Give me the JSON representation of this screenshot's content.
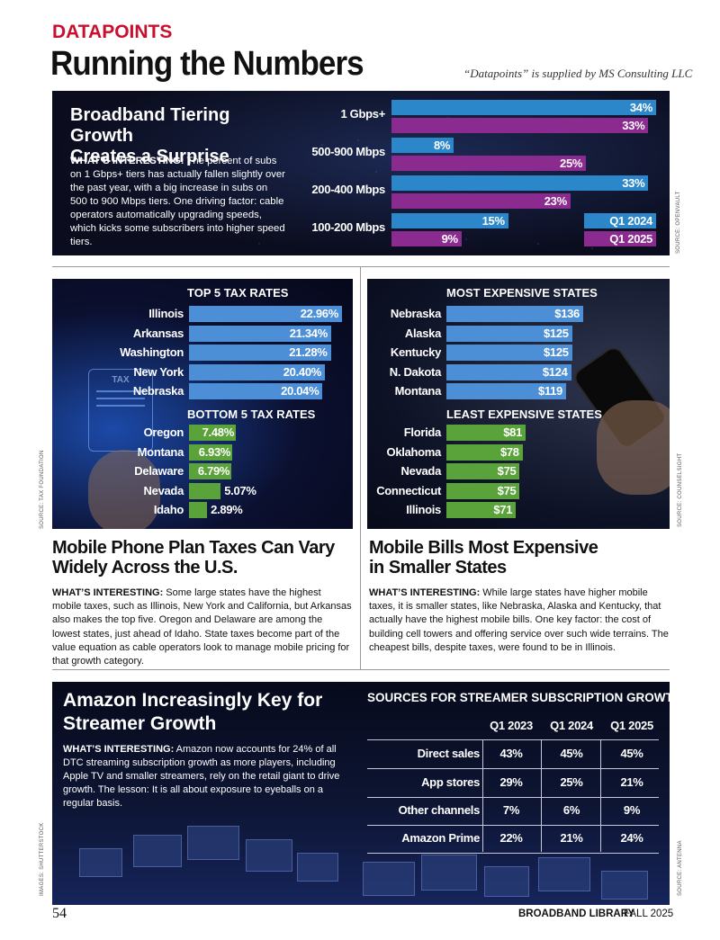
{
  "header": {
    "kicker": "DATAPOINTS",
    "title": "Running the Numbers",
    "supplied_by": "“Datapoints” is supplied by MS Consulting LLC"
  },
  "tiering": {
    "title_line1": "Broadband Tiering Growth",
    "title_line2": "Creates a Surprise",
    "lead": "WHAT’S INTERESTING:",
    "body": " The percent of subs on 1 Gbps+ tiers has actually fallen slightly over the past year, with a big increase in subs on 500 to 900 Mbps tiers. One driving factor: cable operators automatically upgrading speeds, which kicks some subscribers into higher speed tiers.",
    "source": "SOURCE: OPENVAULT"
  },
  "tax": {
    "top_heading": "TOP 5 TAX RATES",
    "bottom_heading": "BOTTOM 5 TAX RATES",
    "source": "SOURCE: TAX FOUNDATION",
    "headline_line1": "Mobile Phone Plan Taxes Can Vary",
    "headline_line2": "Widely Across the U.S.",
    "lead": "WHAT’S INTERESTING:",
    "body": " Some large states have the highest mobile taxes, such as Illinois, New York and California, but Arkansas also makes the top five. Oregon and Delaware are among the lowest states, just ahead of Idaho. State taxes become part of the value equation as cable operators look to manage mobile pricing for that growth category.",
    "icon_text": "TAX"
  },
  "bills": {
    "top_heading": "MOST EXPENSIVE STATES",
    "bottom_heading": "LEAST EXPENSIVE STATES",
    "source": "SOURCE: COUNSELSIGHT",
    "headline_line1": "Mobile Bills Most Expensive",
    "headline_line2": "in Smaller States",
    "lead": "WHAT’S INTERESTING:",
    "body": " While large states have higher mobile taxes, it is smaller states, like Nebraska, Alaska and Kentucky, that actually have the highest mobile bills. One key factor: the cost of building cell towers and offering service over such wide terrains. The cheapest bills, despite taxes, were found to be in Illinois."
  },
  "streamer": {
    "title_line1": "Amazon Increasingly Key for",
    "title_line2": "Streamer Growth",
    "lead": "WHAT’S INTERESTING:",
    "body": " Amazon now accounts for 24% of all DTC streaming subscription growth as more players, including Apple TV and smaller streamers, rely on the retail giant to drive growth. The lesson: It is all about exposure to eyeballs on a regular basis.",
    "source": "SOURCE: ANTENNA",
    "images_credit": "IMAGES: SHUTTERSTOCK"
  },
  "footer": {
    "page_number": "54",
    "publication": "BROADBAND LIBRARY",
    "issue": "FALL 2025"
  },
  "colors": {
    "q1_2024": "#2b87c9",
    "q1_2025": "#8b2a8f",
    "tax_bar": "#4d8fd6",
    "low_bar": "#5aa33a"
  },
  "chart_data": [
    {
      "type": "bar",
      "orientation": "horizontal",
      "categories": [
        "1 Gbps+",
        "500-900 Mbps",
        "200-400 Mbps",
        "100-200 Mbps"
      ],
      "series": [
        {
          "name": "Q1 2024",
          "values": [
            34,
            8,
            33,
            15
          ],
          "labels": [
            "34%",
            "8%",
            "33%",
            "15%"
          ]
        },
        {
          "name": "Q1 2025",
          "values": [
            33,
            25,
            23,
            9
          ],
          "labels": [
            "33%",
            "25%",
            "23%",
            "9%"
          ]
        }
      ],
      "legend": "inside-bottom-right"
    },
    {
      "type": "bar",
      "orientation": "horizontal",
      "categories": [
        "Illinois",
        "Arkansas",
        "Washington",
        "New York",
        "Nebraska"
      ],
      "values": [
        22.96,
        21.34,
        21.28,
        20.4,
        20.04
      ],
      "labels": [
        "22.96%",
        "21.34%",
        "21.28%",
        "20.40%",
        "20.04%"
      ]
    },
    {
      "type": "bar",
      "orientation": "horizontal",
      "categories": [
        "Oregon",
        "Montana",
        "Delaware",
        "Nevada",
        "Idaho"
      ],
      "values": [
        7.48,
        6.93,
        6.79,
        5.07,
        2.89
      ],
      "labels": [
        "7.48%",
        "6.93%",
        "6.79%",
        "5.07%",
        "2.89%"
      ]
    },
    {
      "type": "bar",
      "orientation": "horizontal",
      "categories": [
        "Nebraska",
        "Alaska",
        "Kentucky",
        "N. Dakota",
        "Montana"
      ],
      "values": [
        136,
        125,
        125,
        124,
        119
      ],
      "labels": [
        "$136",
        "$125",
        "$125",
        "$124",
        "$119"
      ]
    },
    {
      "type": "bar",
      "orientation": "horizontal",
      "categories": [
        "Florida",
        "Oklahoma",
        "Nevada",
        "Connecticut",
        "Illinois"
      ],
      "values": [
        81,
        78,
        75,
        75,
        71
      ],
      "labels": [
        "$81",
        "$78",
        "$75",
        "$75",
        "$71"
      ]
    },
    {
      "type": "table",
      "title": "SOURCES FOR STREAMER SUBSCRIPTION GROWTH",
      "columns": [
        "Q1 2023",
        "Q1 2024",
        "Q1 2025"
      ],
      "rows": [
        {
          "label": "Direct sales",
          "values": [
            "43%",
            "45%",
            "45%"
          ]
        },
        {
          "label": "App stores",
          "values": [
            "29%",
            "25%",
            "21%"
          ]
        },
        {
          "label": "Other channels",
          "values": [
            "7%",
            "6%",
            "9%"
          ]
        },
        {
          "label": "Amazon Prime",
          "values": [
            "22%",
            "21%",
            "24%"
          ]
        }
      ]
    }
  ]
}
